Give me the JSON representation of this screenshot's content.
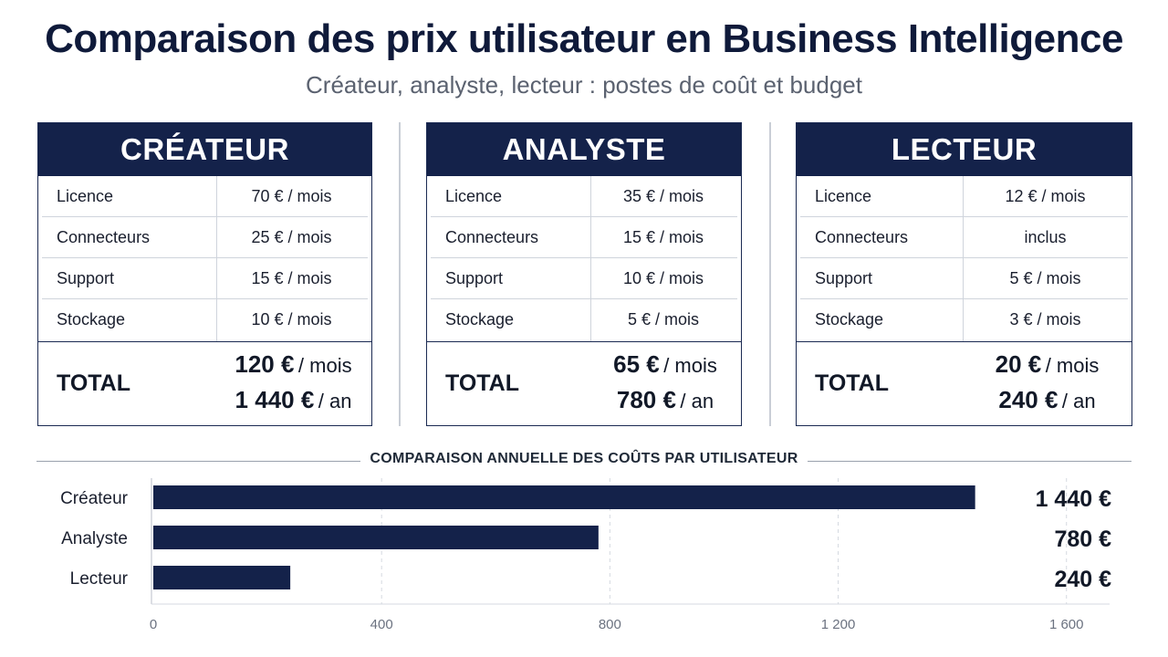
{
  "title": "Comparaison des prix utilisateur en Business Intelligence",
  "subtitle": "Créateur, analyste, lecteur : postes de coût et budget",
  "cards": [
    {
      "header": "CRÉATEUR",
      "rows": [
        {
          "label": "Licence",
          "value": "70 € / mois"
        },
        {
          "label": "Connecteurs",
          "value": "25 € / mois"
        },
        {
          "label": "Support",
          "value": "15 € / mois"
        },
        {
          "label": "Stockage",
          "value": "10 € / mois"
        }
      ],
      "total_label": "TOTAL",
      "total_month_num": "120 €",
      "total_month_unit": "/ mois",
      "total_year_num": "1 440 €",
      "total_year_unit": "/ an"
    },
    {
      "header": "ANALYSTE",
      "rows": [
        {
          "label": "Licence",
          "value": "35 € / mois"
        },
        {
          "label": "Connecteurs",
          "value": "15 € / mois"
        },
        {
          "label": "Support",
          "value": "10 € / mois"
        },
        {
          "label": "Stockage",
          "value": "5 € / mois"
        }
      ],
      "total_label": "TOTAL",
      "total_month_num": "65 €",
      "total_month_unit": "/ mois",
      "total_year_num": "780 €",
      "total_year_unit": "/ an"
    },
    {
      "header": "LECTEUR",
      "rows": [
        {
          "label": "Licence",
          "value": "12 € / mois"
        },
        {
          "label": "Connecteurs",
          "value": "inclus"
        },
        {
          "label": "Support",
          "value": "5 € / mois"
        },
        {
          "label": "Stockage",
          "value": "3 € / mois"
        }
      ],
      "total_label": "TOTAL",
      "total_month_num": "20 €",
      "total_month_unit": "/ mois",
      "total_year_num": "240 €",
      "total_year_unit": "/ an"
    }
  ],
  "chart_data": {
    "type": "bar",
    "orientation": "horizontal",
    "title": "COMPARAISON ANNUELLE DES COÛTS PAR UTILISATEUR",
    "categories": [
      "Créateur",
      "Analyste",
      "Lecteur"
    ],
    "values": [
      1440,
      780,
      240
    ],
    "value_labels": [
      "1 440 €",
      "780 €",
      "240 €"
    ],
    "x_ticks": [
      0,
      400,
      800,
      1200,
      1600
    ],
    "x_tick_labels": [
      "0",
      "400",
      "800",
      "1 200",
      "1 600"
    ],
    "xlim": [
      0,
      1650
    ],
    "grid": "vertical dashed",
    "bar_color": "#14224a"
  }
}
